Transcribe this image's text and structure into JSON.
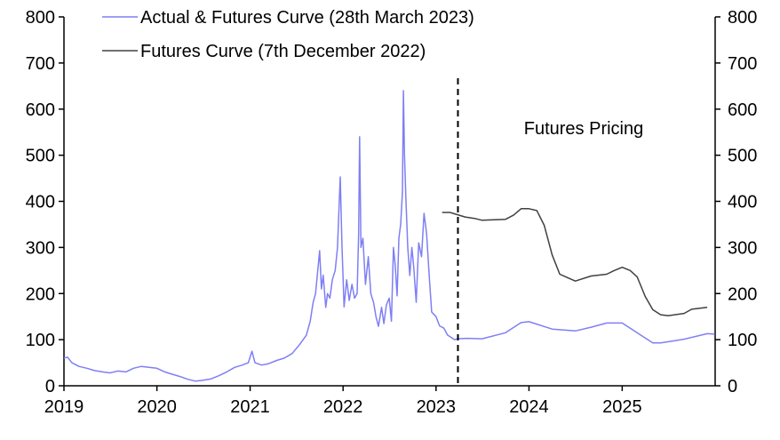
{
  "chart_data": {
    "type": "line",
    "title": "",
    "xlabel": "",
    "ylabel": "",
    "xlim": [
      "2019-01-01",
      "2026-01-01"
    ],
    "ylim": [
      0,
      800
    ],
    "y_ticks": [
      0,
      100,
      200,
      300,
      400,
      500,
      600,
      700,
      800
    ],
    "y_ticks_right": [
      0,
      100,
      200,
      300,
      400,
      500,
      600,
      700,
      800
    ],
    "x_ticks": [
      "2019",
      "2020",
      "2021",
      "2022",
      "2023",
      "2024",
      "2025"
    ],
    "grid": false,
    "legend_position": "top-left",
    "annotation": {
      "text": "Futures Pricing",
      "x": "2024-07-01",
      "y": 560
    },
    "divider": {
      "date": "2023-03-28",
      "style": "dashed",
      "top_value": 667
    },
    "series": [
      {
        "name": "Actual & Futures Curve (28th March 2023)",
        "color": "#7f7ff5",
        "points": [
          [
            "2019-01-01",
            60
          ],
          [
            "2019-01-15",
            62
          ],
          [
            "2019-02-01",
            50
          ],
          [
            "2019-03-01",
            42
          ],
          [
            "2019-04-01",
            38
          ],
          [
            "2019-05-01",
            33
          ],
          [
            "2019-06-01",
            30
          ],
          [
            "2019-07-01",
            28
          ],
          [
            "2019-08-01",
            32
          ],
          [
            "2019-09-01",
            30
          ],
          [
            "2019-10-01",
            38
          ],
          [
            "2019-11-01",
            42
          ],
          [
            "2019-12-01",
            40
          ],
          [
            "2020-01-01",
            38
          ],
          [
            "2020-02-01",
            30
          ],
          [
            "2020-03-01",
            25
          ],
          [
            "2020-04-01",
            20
          ],
          [
            "2020-05-01",
            14
          ],
          [
            "2020-06-01",
            10
          ],
          [
            "2020-07-01",
            12
          ],
          [
            "2020-08-01",
            15
          ],
          [
            "2020-09-01",
            22
          ],
          [
            "2020-10-01",
            30
          ],
          [
            "2020-11-01",
            40
          ],
          [
            "2020-12-01",
            45
          ],
          [
            "2020-12-25",
            50
          ],
          [
            "2021-01-08",
            75
          ],
          [
            "2021-01-20",
            50
          ],
          [
            "2021-02-15",
            45
          ],
          [
            "2021-03-15",
            48
          ],
          [
            "2021-04-15",
            55
          ],
          [
            "2021-05-15",
            60
          ],
          [
            "2021-06-15",
            70
          ],
          [
            "2021-07-15",
            90
          ],
          [
            "2021-08-10",
            110
          ],
          [
            "2021-08-25",
            140
          ],
          [
            "2021-09-05",
            180
          ],
          [
            "2021-09-15",
            200
          ],
          [
            "2021-10-01",
            293
          ],
          [
            "2021-10-08",
            210
          ],
          [
            "2021-10-15",
            240
          ],
          [
            "2021-10-25",
            170
          ],
          [
            "2021-11-01",
            200
          ],
          [
            "2021-11-10",
            190
          ],
          [
            "2021-11-20",
            230
          ],
          [
            "2021-12-01",
            250
          ],
          [
            "2021-12-10",
            300
          ],
          [
            "2021-12-21",
            453
          ],
          [
            "2021-12-28",
            300
          ],
          [
            "2022-01-05",
            171
          ],
          [
            "2022-01-15",
            230
          ],
          [
            "2022-01-25",
            185
          ],
          [
            "2022-02-05",
            220
          ],
          [
            "2022-02-15",
            190
          ],
          [
            "2022-02-25",
            200
          ],
          [
            "2022-03-03",
            330
          ],
          [
            "2022-03-07",
            540
          ],
          [
            "2022-03-12",
            300
          ],
          [
            "2022-03-20",
            320
          ],
          [
            "2022-03-30",
            220
          ],
          [
            "2022-04-10",
            280
          ],
          [
            "2022-04-20",
            200
          ],
          [
            "2022-05-01",
            180
          ],
          [
            "2022-05-10",
            150
          ],
          [
            "2022-05-20",
            129
          ],
          [
            "2022-06-01",
            170
          ],
          [
            "2022-06-10",
            135
          ],
          [
            "2022-06-20",
            175
          ],
          [
            "2022-07-01",
            190
          ],
          [
            "2022-07-10",
            140
          ],
          [
            "2022-07-18",
            300
          ],
          [
            "2022-07-25",
            260
          ],
          [
            "2022-08-01",
            195
          ],
          [
            "2022-08-08",
            320
          ],
          [
            "2022-08-15",
            350
          ],
          [
            "2022-08-22",
            420
          ],
          [
            "2022-08-26",
            640
          ],
          [
            "2022-08-30",
            500
          ],
          [
            "2022-09-05",
            400
          ],
          [
            "2022-09-12",
            300
          ],
          [
            "2022-09-20",
            239
          ],
          [
            "2022-09-28",
            300
          ],
          [
            "2022-10-05",
            260
          ],
          [
            "2022-10-15",
            181
          ],
          [
            "2022-10-25",
            310
          ],
          [
            "2022-11-05",
            280
          ],
          [
            "2022-11-15",
            374
          ],
          [
            "2022-11-25",
            330
          ],
          [
            "2022-12-05",
            240
          ],
          [
            "2022-12-15",
            160
          ],
          [
            "2023-01-01",
            150
          ],
          [
            "2023-01-15",
            130
          ],
          [
            "2023-02-01",
            125
          ],
          [
            "2023-02-15",
            110
          ],
          [
            "2023-03-01",
            105
          ],
          [
            "2023-03-15",
            100
          ],
          [
            "2023-03-28",
            102
          ],
          [
            "2023-05-01",
            103
          ],
          [
            "2023-07-01",
            102
          ],
          [
            "2023-10-01",
            115
          ],
          [
            "2023-12-01",
            137
          ],
          [
            "2024-01-01",
            139
          ],
          [
            "2024-04-01",
            123
          ],
          [
            "2024-07-01",
            119
          ],
          [
            "2024-09-01",
            127
          ],
          [
            "2024-11-01",
            136
          ],
          [
            "2025-01-01",
            136
          ],
          [
            "2025-05-01",
            93
          ],
          [
            "2025-06-01",
            93
          ],
          [
            "2025-09-01",
            101
          ],
          [
            "2025-12-01",
            113
          ],
          [
            "2025-12-31",
            112
          ]
        ]
      },
      {
        "name": "Futures Curve (7th December 2022)",
        "color": "#404040",
        "points": [
          [
            "2023-01-25",
            376
          ],
          [
            "2023-02-25",
            376
          ],
          [
            "2023-04-25",
            366
          ],
          [
            "2023-06-01",
            363
          ],
          [
            "2023-07-01",
            359
          ],
          [
            "2023-10-01",
            361
          ],
          [
            "2023-11-01",
            370
          ],
          [
            "2023-12-01",
            384
          ],
          [
            "2024-01-01",
            384
          ],
          [
            "2024-02-01",
            380
          ],
          [
            "2024-03-01",
            348
          ],
          [
            "2024-04-01",
            284
          ],
          [
            "2024-05-01",
            242
          ],
          [
            "2024-07-01",
            227
          ],
          [
            "2024-09-01",
            238
          ],
          [
            "2024-11-01",
            242
          ],
          [
            "2024-12-01",
            250
          ],
          [
            "2025-01-01",
            257
          ],
          [
            "2025-02-01",
            250
          ],
          [
            "2025-03-01",
            236
          ],
          [
            "2025-04-01",
            194
          ],
          [
            "2025-05-01",
            165
          ],
          [
            "2025-06-01",
            154
          ],
          [
            "2025-07-01",
            152
          ],
          [
            "2025-09-01",
            157
          ],
          [
            "2025-10-01",
            166
          ],
          [
            "2025-12-01",
            170
          ]
        ]
      }
    ]
  }
}
